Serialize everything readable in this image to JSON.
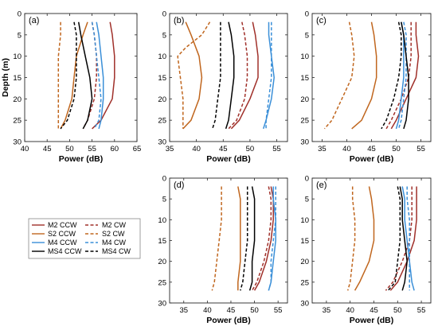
{
  "colors": {
    "M2": "#a0302a",
    "S2": "#c0661e",
    "M4": "#3a8fd8",
    "MS4": "#000000"
  },
  "legend": {
    "entries": [
      {
        "key": "M2",
        "style": "solid",
        "label": "M2 CCW"
      },
      {
        "key": "M2",
        "style": "dashed",
        "label": "M2 CW"
      },
      {
        "key": "S2",
        "style": "solid",
        "label": "S2 CCW"
      },
      {
        "key": "S2",
        "style": "dashed",
        "label": "S2 CW"
      },
      {
        "key": "M4",
        "style": "solid",
        "label": "M4 CCW"
      },
      {
        "key": "M4",
        "style": "dashed",
        "label": "M4 CW"
      },
      {
        "key": "MS4",
        "style": "solid",
        "label": "MS4 CCW"
      },
      {
        "key": "MS4",
        "style": "dashed",
        "label": "MS4 CW"
      }
    ]
  },
  "chart_data": [
    {
      "type": "line",
      "panel_label": "(a)",
      "xlabel": "Power (dB)",
      "ylabel": "Depth (m)",
      "xlim": [
        40,
        65
      ],
      "ylim": [
        0,
        30
      ],
      "xticks": [
        40,
        45,
        50,
        55,
        60,
        65
      ],
      "yticks": [
        0,
        5,
        10,
        15,
        20,
        25,
        30
      ],
      "y_reversed": true,
      "grid": false,
      "series": [
        {
          "name": "M2 CCW",
          "depth": [
            2,
            5,
            10,
            15,
            20,
            25,
            27
          ],
          "power": [
            59,
            59.5,
            60,
            60,
            59.5,
            57,
            55
          ]
        },
        {
          "name": "M2 CW",
          "depth": [
            2,
            5,
            10,
            15,
            20,
            25,
            27
          ],
          "power": [
            55,
            55.5,
            56,
            56,
            55.5,
            54,
            53
          ]
        },
        {
          "name": "S2 CCW",
          "depth": [
            2,
            5,
            10,
            15,
            20,
            25,
            27
          ],
          "power": [
            54,
            53,
            51.5,
            51,
            50.5,
            49,
            48
          ]
        },
        {
          "name": "S2 CW",
          "depth": [
            2,
            5,
            10,
            15,
            20,
            25,
            27
          ],
          "power": [
            48,
            48,
            47.5,
            47.5,
            47.5,
            47.5,
            47.5
          ]
        },
        {
          "name": "M4 CCW",
          "depth": [
            2,
            5,
            10,
            15,
            20,
            25,
            27
          ],
          "power": [
            56,
            56.5,
            57,
            57.5,
            57.5,
            57,
            56.5
          ]
        },
        {
          "name": "M4 CW",
          "depth": [
            2,
            5,
            10,
            15,
            20,
            25,
            27
          ],
          "power": [
            55,
            55.5,
            56,
            56.5,
            57,
            56.5,
            55.5
          ]
        },
        {
          "name": "MS4 CCW",
          "depth": [
            2,
            5,
            10,
            15,
            20,
            25,
            27
          ],
          "power": [
            52,
            52.5,
            53.5,
            54.5,
            55,
            54,
            53
          ]
        },
        {
          "name": "MS4 CW",
          "depth": [
            2,
            5,
            10,
            15,
            20,
            25,
            27
          ],
          "power": [
            51,
            51.5,
            51.5,
            51.5,
            51,
            49.5,
            48
          ]
        }
      ]
    },
    {
      "type": "line",
      "panel_label": "(b)",
      "xlabel": "Power (dB)",
      "ylabel": "",
      "xlim": [
        35,
        57
      ],
      "ylim": [
        0,
        30
      ],
      "xticks": [
        35,
        40,
        45,
        50,
        55
      ],
      "yticks": [
        0,
        5,
        10,
        15,
        20,
        25,
        30
      ],
      "y_reversed": true,
      "grid": false,
      "series": [
        {
          "name": "M2 CCW",
          "depth": [
            2,
            5,
            10,
            15,
            20,
            25,
            27
          ],
          "power": [
            50.5,
            51,
            51.5,
            51.5,
            50,
            48,
            46.5
          ]
        },
        {
          "name": "M2 CW",
          "depth": [
            2,
            5,
            10,
            15,
            20,
            25,
            27
          ],
          "power": [
            48.5,
            49,
            49.5,
            49.5,
            49,
            47.5,
            46
          ]
        },
        {
          "name": "S2 CCW",
          "depth": [
            2,
            5,
            10,
            15,
            20,
            25,
            27
          ],
          "power": [
            38,
            39,
            40.5,
            41,
            40.5,
            39,
            37.5
          ]
        },
        {
          "name": "S2 CW",
          "depth": [
            2,
            5,
            8,
            10,
            15,
            20,
            25,
            27
          ],
          "power": [
            42.5,
            41,
            38,
            36.5,
            37,
            37.5,
            37.5,
            37.5
          ]
        },
        {
          "name": "M4 CCW",
          "depth": [
            2,
            5,
            10,
            15,
            20,
            25,
            27
          ],
          "power": [
            53.5,
            53.5,
            54,
            54.5,
            54,
            53,
            52.5
          ]
        },
        {
          "name": "M4 CW",
          "depth": [
            2,
            5,
            10,
            15,
            20,
            25,
            27
          ],
          "power": [
            54,
            54,
            54,
            54,
            53.5,
            53,
            53
          ]
        },
        {
          "name": "MS4 CCW",
          "depth": [
            2,
            5,
            10,
            15,
            20,
            25,
            27
          ],
          "power": [
            46,
            46.5,
            47,
            47,
            46.5,
            46,
            45.5
          ]
        },
        {
          "name": "MS4 CW",
          "depth": [
            2,
            5,
            10,
            15,
            20,
            25,
            27
          ],
          "power": [
            44.5,
            44.5,
            44.5,
            44.5,
            44,
            43.5,
            43
          ]
        }
      ]
    },
    {
      "type": "line",
      "panel_label": "(c)",
      "xlabel": "Power (dB)",
      "ylabel": "",
      "xlim": [
        33,
        57
      ],
      "ylim": [
        0,
        30
      ],
      "xticks": [
        35,
        40,
        45,
        50,
        55
      ],
      "yticks": [
        0,
        5,
        10,
        15,
        20,
        25,
        30
      ],
      "y_reversed": true,
      "grid": false,
      "series": [
        {
          "name": "M2 CCW",
          "depth": [
            2,
            5,
            10,
            15,
            20,
            25,
            27
          ],
          "power": [
            54,
            54,
            54.5,
            54,
            52,
            50,
            49
          ]
        },
        {
          "name": "M2 CW",
          "depth": [
            2,
            5,
            10,
            15,
            20,
            25,
            27
          ],
          "power": [
            53,
            53,
            53,
            52.5,
            51,
            49,
            48
          ]
        },
        {
          "name": "S2 CCW",
          "depth": [
            2,
            5,
            10,
            15,
            20,
            25,
            27
          ],
          "power": [
            45,
            45.5,
            46,
            46,
            45,
            43,
            41
          ]
        },
        {
          "name": "S2 CW",
          "depth": [
            2,
            5,
            10,
            15,
            20,
            25,
            27
          ],
          "power": [
            40.5,
            41,
            41.5,
            41,
            39,
            37,
            35.5
          ]
        },
        {
          "name": "M4 CCW",
          "depth": [
            2,
            5,
            10,
            15,
            20,
            25,
            27
          ],
          "power": [
            51,
            51.5,
            51.5,
            51.5,
            51,
            50.5,
            50
          ]
        },
        {
          "name": "M4 CW",
          "depth": [
            2,
            5,
            10,
            15,
            20,
            25,
            27
          ],
          "power": [
            51.5,
            52,
            52,
            52,
            51.5,
            51,
            50.5
          ]
        },
        {
          "name": "MS4 CCW",
          "depth": [
            2,
            5,
            10,
            15,
            20,
            25,
            27
          ],
          "power": [
            51,
            51.5,
            52,
            52.5,
            52.5,
            52,
            51.5
          ]
        },
        {
          "name": "MS4 CW",
          "depth": [
            2,
            5,
            10,
            15,
            20,
            25,
            27
          ],
          "power": [
            50.5,
            51,
            51,
            50.5,
            49.5,
            48,
            47
          ]
        }
      ]
    },
    {
      "type": "line",
      "panel_label": "(d)",
      "xlabel": "Power (dB)",
      "ylabel": "",
      "xlim": [
        32,
        57
      ],
      "ylim": [
        0,
        30
      ],
      "xticks": [
        35,
        40,
        45,
        50,
        55
      ],
      "yticks": [
        0,
        5,
        10,
        15,
        20,
        25,
        30
      ],
      "y_reversed": true,
      "grid": false,
      "series": [
        {
          "name": "M2 CCW",
          "depth": [
            2,
            5,
            10,
            15,
            20,
            25,
            27
          ],
          "power": [
            53.5,
            54,
            54,
            53.5,
            52.5,
            51,
            50
          ]
        },
        {
          "name": "M2 CW",
          "depth": [
            2,
            5,
            10,
            15,
            20,
            25,
            27
          ],
          "power": [
            53,
            53.5,
            53.5,
            53,
            52,
            50.5,
            49.5
          ]
        },
        {
          "name": "S2 CCW",
          "depth": [
            2,
            5,
            10,
            15,
            20,
            25,
            27
          ],
          "power": [
            46.5,
            47,
            47,
            47,
            47,
            46.5,
            46.5
          ]
        },
        {
          "name": "S2 CW",
          "depth": [
            2,
            5,
            10,
            15,
            20,
            25,
            27
          ],
          "power": [
            43,
            43,
            43,
            42.5,
            42,
            41.5,
            41
          ]
        },
        {
          "name": "M4 CCW",
          "depth": [
            2,
            5,
            10,
            15,
            20,
            25,
            27
          ],
          "power": [
            54,
            54,
            54.5,
            54.5,
            54,
            53.5,
            53
          ]
        },
        {
          "name": "M4 CW",
          "depth": [
            2,
            5,
            10,
            15,
            20,
            25,
            27
          ],
          "power": [
            54.5,
            54.5,
            54.5,
            54,
            53.5,
            53.5,
            53
          ]
        },
        {
          "name": "MS4 CCW",
          "depth": [
            2,
            5,
            10,
            15,
            20,
            25,
            27
          ],
          "power": [
            49.5,
            50,
            50,
            50,
            49.5,
            49.5,
            49
          ]
        },
        {
          "name": "MS4 CW",
          "depth": [
            2,
            5,
            10,
            15,
            20,
            25,
            27
          ],
          "power": [
            48.5,
            48.5,
            48.5,
            48.5,
            48,
            47.5,
            47
          ]
        }
      ]
    },
    {
      "type": "line",
      "panel_label": "(e)",
      "xlabel": "Power (dB)",
      "ylabel": "",
      "xlim": [
        32,
        57
      ],
      "ylim": [
        0,
        30
      ],
      "xticks": [
        35,
        40,
        45,
        50,
        55
      ],
      "yticks": [
        0,
        5,
        10,
        15,
        20,
        25,
        30
      ],
      "y_reversed": true,
      "grid": false,
      "series": [
        {
          "name": "M2 CCW",
          "depth": [
            2,
            5,
            10,
            15,
            20,
            25,
            27
          ],
          "power": [
            54,
            54,
            54,
            53.5,
            52,
            50,
            48.5
          ]
        },
        {
          "name": "M2 CW",
          "depth": [
            2,
            5,
            10,
            15,
            20,
            25,
            27
          ],
          "power": [
            53,
            53,
            53,
            52.5,
            51,
            49,
            47.5
          ]
        },
        {
          "name": "S2 CCW",
          "depth": [
            2,
            5,
            10,
            15,
            20,
            25,
            27
          ],
          "power": [
            44,
            44.5,
            45,
            45,
            44,
            42,
            41
          ]
        },
        {
          "name": "S2 CW",
          "depth": [
            2,
            5,
            10,
            15,
            20,
            25,
            27
          ],
          "power": [
            40.5,
            40.5,
            41,
            41,
            40.5,
            40,
            39.5
          ]
        },
        {
          "name": "M4 CCW",
          "depth": [
            2,
            5,
            10,
            15,
            20,
            25,
            27
          ],
          "power": [
            51,
            51.5,
            51.5,
            52,
            52.5,
            53,
            53.5
          ]
        },
        {
          "name": "M4 CW",
          "depth": [
            2,
            5,
            10,
            15,
            20,
            25,
            27
          ],
          "power": [
            52,
            52,
            52.5,
            52.5,
            52.5,
            52.5,
            52.5
          ]
        },
        {
          "name": "MS4 CCW",
          "depth": [
            2,
            5,
            10,
            15,
            20,
            25,
            27
          ],
          "power": [
            50.5,
            51,
            51,
            51.5,
            52,
            51.5,
            51
          ]
        },
        {
          "name": "MS4 CW",
          "depth": [
            2,
            5,
            10,
            15,
            20,
            25,
            27
          ],
          "power": [
            50,
            50.5,
            50.5,
            50.5,
            50,
            49.5,
            48
          ]
        }
      ]
    }
  ]
}
